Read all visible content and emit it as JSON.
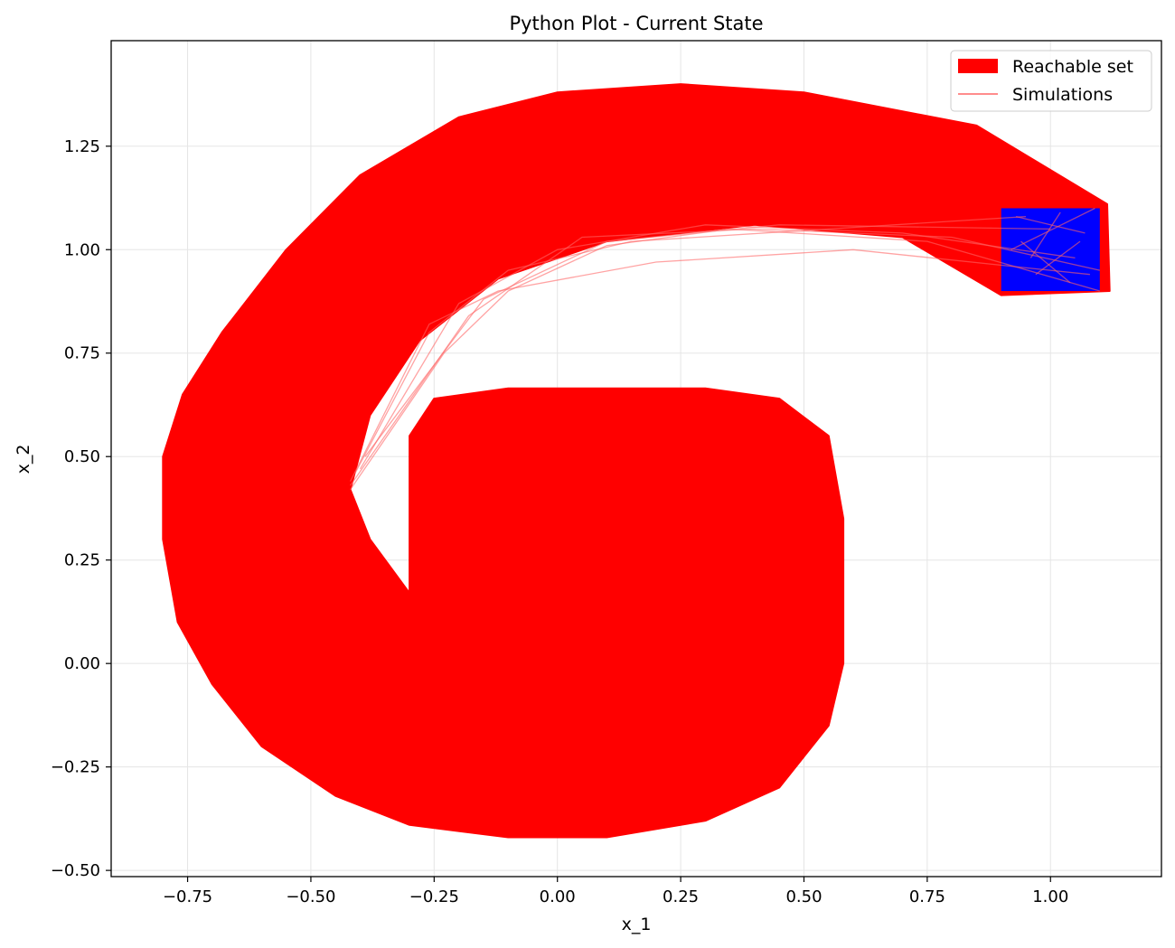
{
  "chart_data": {
    "type": "area",
    "title": "Python Plot - Current State",
    "xlabel": "x_1",
    "ylabel": "x_2",
    "xlim": [
      -0.905,
      1.225
    ],
    "ylim": [
      -0.515,
      1.505
    ],
    "xticks": [
      -0.75,
      -0.5,
      -0.25,
      0.0,
      0.25,
      0.5,
      0.75,
      1.0
    ],
    "xtick_labels": [
      "−0.75",
      "−0.50",
      "−0.25",
      "0.00",
      "0.25",
      "0.50",
      "0.75",
      "1.00"
    ],
    "yticks": [
      -0.5,
      -0.25,
      0.0,
      0.25,
      0.5,
      0.75,
      1.0,
      1.25
    ],
    "ytick_labels": [
      "−0.50",
      "−0.25",
      "0.00",
      "0.25",
      "0.50",
      "0.75",
      "1.00",
      "1.25"
    ],
    "grid": true,
    "legend_position": "top-right",
    "colors": {
      "reachable": "#ff0000",
      "initial_set": "#0000ff",
      "simulation": "#ff0000",
      "grid": "#e5e5e5"
    },
    "series": [
      {
        "name": "Reachable set",
        "kind": "filled-region",
        "color": "#ff0000",
        "outer_boundary": [
          [
            1.12,
            0.9
          ],
          [
            1.115,
            1.11
          ],
          [
            0.85,
            1.3
          ],
          [
            0.5,
            1.38
          ],
          [
            0.25,
            1.4
          ],
          [
            0.0,
            1.38
          ],
          [
            -0.2,
            1.32
          ],
          [
            -0.4,
            1.18
          ],
          [
            -0.55,
            1.0
          ],
          [
            -0.68,
            0.8
          ],
          [
            -0.76,
            0.65
          ],
          [
            -0.8,
            0.5
          ],
          [
            -0.8,
            0.3
          ],
          [
            -0.77,
            0.1
          ],
          [
            -0.7,
            -0.05
          ],
          [
            -0.6,
            -0.2
          ],
          [
            -0.45,
            -0.32
          ],
          [
            -0.3,
            -0.39
          ],
          [
            -0.1,
            -0.42
          ],
          [
            0.1,
            -0.42
          ],
          [
            0.3,
            -0.38
          ],
          [
            0.45,
            -0.3
          ],
          [
            0.55,
            -0.15
          ],
          [
            0.58,
            0.0
          ],
          [
            0.58,
            0.35
          ],
          [
            0.55,
            0.55
          ],
          [
            0.45,
            0.64
          ],
          [
            0.3,
            0.665
          ],
          [
            -0.1,
            0.665
          ],
          [
            -0.25,
            0.64
          ],
          [
            -0.3,
            0.55
          ],
          [
            -0.3,
            0.17
          ],
          [
            -0.38,
            0.3
          ],
          [
            -0.42,
            0.42
          ],
          [
            -0.38,
            0.6
          ],
          [
            -0.28,
            0.78
          ],
          [
            -0.12,
            0.93
          ],
          [
            0.1,
            1.02
          ],
          [
            0.4,
            1.06
          ],
          [
            0.7,
            1.03
          ],
          [
            0.9,
            0.89
          ]
        ]
      },
      {
        "name": "",
        "kind": "initial-set",
        "color": "#0000ff",
        "x_range": [
          0.9,
          1.1
        ],
        "y_range": [
          0.9,
          1.1
        ]
      },
      {
        "name": "Simulations",
        "kind": "lines",
        "color": "#ff0000",
        "opacity": 0.6,
        "lines": [
          [
            [
              1.1,
              0.9
            ],
            [
              0.75,
              1.02
            ],
            [
              0.35,
              1.05
            ],
            [
              0.1,
              1.01
            ],
            [
              -0.1,
              0.9
            ],
            [
              -0.23,
              0.75
            ],
            [
              -0.42,
              0.42
            ]
          ],
          [
            [
              1.08,
              0.94
            ],
            [
              0.6,
              1.0
            ],
            [
              0.2,
              0.97
            ],
            [
              -0.12,
              0.9
            ],
            [
              -0.26,
              0.82
            ],
            [
              -0.42,
              0.44
            ]
          ],
          [
            [
              1.05,
              0.98
            ],
            [
              0.7,
              1.04
            ],
            [
              0.3,
              1.06
            ],
            [
              0.0,
              1.0
            ],
            [
              -0.2,
              0.87
            ],
            [
              -0.4,
              0.47
            ]
          ],
          [
            [
              1.0,
              1.05
            ],
            [
              0.45,
              1.06
            ],
            [
              0.1,
              1.02
            ],
            [
              -0.15,
              0.88
            ],
            [
              -0.39,
              0.5
            ]
          ],
          [
            [
              0.95,
              1.08
            ],
            [
              0.55,
              1.05
            ],
            [
              0.15,
              1.02
            ],
            [
              -0.1,
              0.95
            ],
            [
              -0.26,
              0.8
            ],
            [
              -0.41,
              0.46
            ]
          ],
          [
            [
              1.1,
              0.95
            ],
            [
              0.8,
              1.03
            ],
            [
              0.4,
              1.05
            ],
            [
              0.05,
              1.03
            ],
            [
              -0.18,
              0.84
            ],
            [
              -0.42,
              0.43
            ]
          ],
          [
            [
              1.09,
              1.1
            ],
            [
              0.92,
              1.0
            ]
          ],
          [
            [
              1.07,
              1.04
            ],
            [
              0.93,
              1.08
            ]
          ],
          [
            [
              1.04,
              0.92
            ],
            [
              0.94,
              1.02
            ]
          ],
          [
            [
              1.06,
              1.02
            ],
            [
              0.97,
              0.94
            ]
          ],
          [
            [
              1.02,
              1.09
            ],
            [
              0.96,
              0.98
            ]
          ]
        ]
      }
    ]
  }
}
